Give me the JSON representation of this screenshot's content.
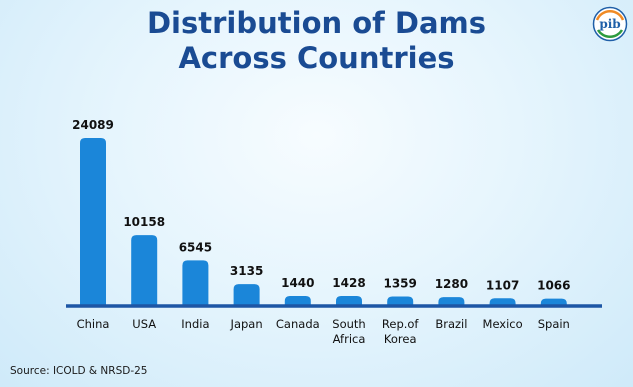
{
  "title_lines": [
    "Distribution of Dams",
    "Across Countries"
  ],
  "source": "Source: ICOLD & NRSD-25",
  "logo_text": "pib",
  "colors": {
    "bar": "#1b86d9",
    "axis": "#1d56a5",
    "title": "#1a4b93"
  },
  "chart_data": {
    "type": "bar",
    "title": "Distribution of Dams Across Countries",
    "xlabel": "",
    "ylabel": "",
    "categories": [
      [
        "China"
      ],
      [
        "USA"
      ],
      [
        "India"
      ],
      [
        "Japan"
      ],
      [
        "Canada"
      ],
      [
        "South",
        "Africa"
      ],
      [
        "Rep.of",
        "Korea"
      ],
      [
        "Brazil"
      ],
      [
        "Mexico"
      ],
      [
        "Spain"
      ]
    ],
    "values": [
      24089,
      10158,
      6545,
      3135,
      1440,
      1428,
      1359,
      1280,
      1107,
      1066
    ],
    "ylim": [
      0,
      24089
    ],
    "grid": false,
    "legend": "none"
  }
}
